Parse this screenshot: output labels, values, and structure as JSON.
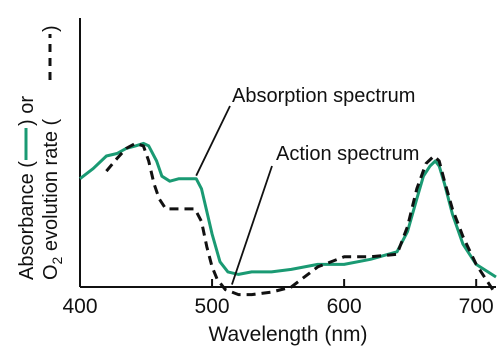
{
  "chart_data": {
    "type": "line",
    "xlabel": "Wavelength (nm)",
    "ylabel_parts": {
      "line1_a": "Absorbance (",
      "line1_b": ") or",
      "line2_o": "O",
      "line2_sub": "2",
      "line2_b": " evolution rate (",
      "line2_c": ")"
    },
    "xlim": [
      400,
      715
    ],
    "ylim": [
      0,
      1
    ],
    "x_ticks": [
      400,
      500,
      600,
      700
    ],
    "grid": false,
    "colors": {
      "absorption": "#1a9a73",
      "action": "#111111",
      "axis": "#111111"
    },
    "series": [
      {
        "name": "Absorption spectrum",
        "style": "solid",
        "x": [
          400,
          410,
          420,
          428,
          435,
          442,
          448,
          452,
          458,
          462,
          468,
          475,
          482,
          488,
          492,
          496,
          500,
          506,
          512,
          520,
          530,
          545,
          560,
          580,
          600,
          620,
          640,
          648,
          655,
          660,
          665,
          669,
          672,
          676,
          682,
          690,
          700,
          715
        ],
        "values": [
          0.41,
          0.45,
          0.5,
          0.51,
          0.53,
          0.54,
          0.55,
          0.54,
          0.48,
          0.42,
          0.4,
          0.41,
          0.41,
          0.41,
          0.37,
          0.28,
          0.19,
          0.08,
          0.04,
          0.03,
          0.04,
          0.04,
          0.05,
          0.07,
          0.07,
          0.09,
          0.12,
          0.2,
          0.33,
          0.42,
          0.46,
          0.48,
          0.46,
          0.39,
          0.27,
          0.15,
          0.07,
          0.02
        ]
      },
      {
        "name": "Action spectrum",
        "style": "dashed",
        "x": [
          420,
          428,
          435,
          442,
          448,
          452,
          456,
          460,
          465,
          472,
          480,
          487,
          492,
          496,
          500,
          504,
          510,
          520,
          530,
          545,
          560,
          580,
          600,
          620,
          640,
          648,
          655,
          662,
          668,
          672,
          676,
          682,
          690,
          700,
          715
        ],
        "values": [
          0.44,
          0.49,
          0.53,
          0.55,
          0.54,
          0.48,
          0.39,
          0.33,
          0.29,
          0.29,
          0.29,
          0.29,
          0.24,
          0.14,
          0.06,
          0.01,
          -0.03,
          -0.05,
          -0.05,
          -0.04,
          -0.02,
          0.06,
          0.1,
          0.1,
          0.11,
          0.22,
          0.37,
          0.47,
          0.5,
          0.48,
          0.4,
          0.29,
          0.18,
          0.07,
          -0.05
        ]
      }
    ],
    "annotations": [
      {
        "text": "Absorption spectrum",
        "points_to": "absorption",
        "at_x": 488
      },
      {
        "text": "Action spectrum",
        "points_to": "action",
        "at_x": 512
      }
    ]
  }
}
